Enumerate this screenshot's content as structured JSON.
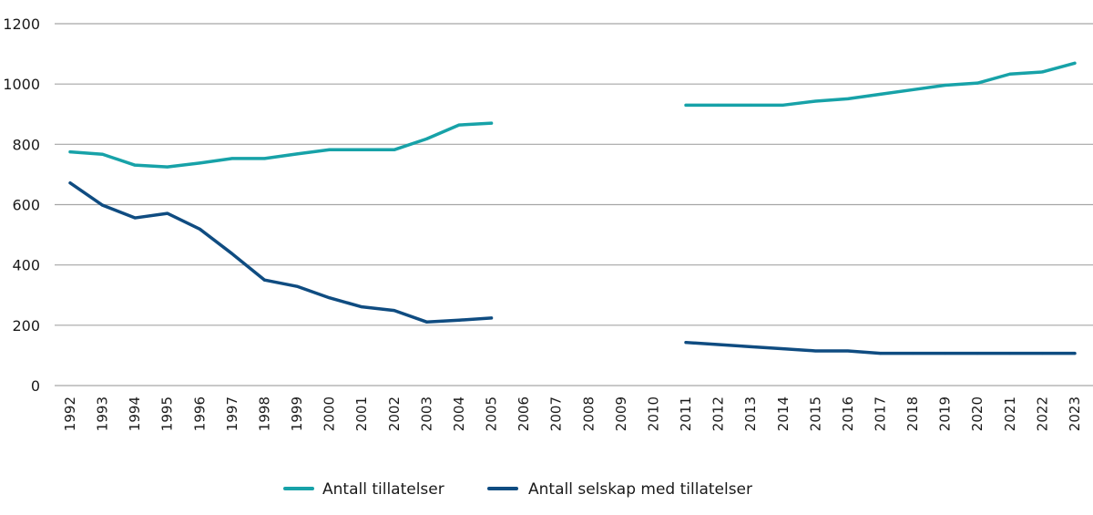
{
  "chart_data": {
    "type": "line",
    "title": "",
    "xlabel": "",
    "ylabel": "",
    "ylim": [
      0,
      1200
    ],
    "yticks": [
      "0",
      "200",
      "400",
      "600",
      "800",
      "1000",
      "1200"
    ],
    "grid": true,
    "legend_position": "bottom-center",
    "x": [
      "1992",
      "1993",
      "1994",
      "1995",
      "1996",
      "1997",
      "1998",
      "1999",
      "2000",
      "2001",
      "2002",
      "2003",
      "2004",
      "2005",
      "2006",
      "2007",
      "2008",
      "2009",
      "2010",
      "2011",
      "2012",
      "2013",
      "2014",
      "2015",
      "2016",
      "2017",
      "2018",
      "2019",
      "2020",
      "2021",
      "2022",
      "2023"
    ],
    "series": [
      {
        "name": "Antall tillatelser",
        "color": "#17a2a8",
        "values": [
          775,
          767,
          731,
          725,
          738,
          753,
          753,
          768,
          782,
          782,
          782,
          818,
          864,
          870,
          null,
          null,
          null,
          null,
          null,
          930,
          930,
          930,
          930,
          943,
          951,
          966,
          981,
          996,
          1003,
          1033,
          1040,
          1069
        ]
      },
      {
        "name": "Antall selskap med tillatelser",
        "color": "#0f4c81",
        "values": [
          672,
          598,
          556,
          571,
          519,
          437,
          350,
          329,
          291,
          261,
          249,
          211,
          217,
          224,
          null,
          null,
          null,
          null,
          null,
          143,
          136,
          129,
          122,
          115,
          115,
          107,
          107,
          107,
          107,
          107,
          107,
          107
        ]
      }
    ]
  }
}
